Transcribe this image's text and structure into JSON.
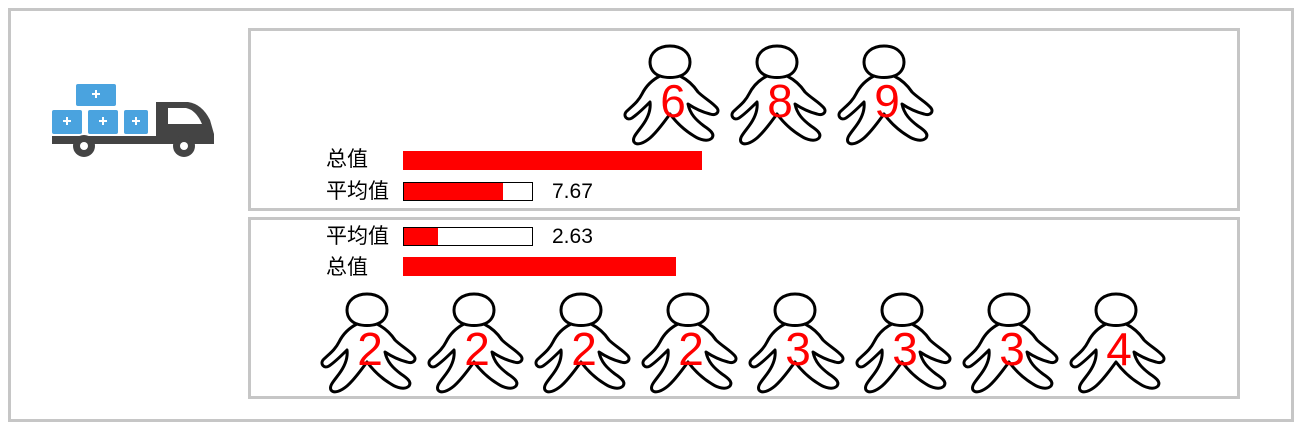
{
  "icons": {
    "delivery": "delivery-truck-icon",
    "person": "person-outline-icon"
  },
  "colors": {
    "accent": "#ff0000",
    "border": "#c6c6c6",
    "truck": "#444444",
    "boxes": "#4aa3df"
  },
  "groups": [
    {
      "total_label": "总值",
      "average_label": "平均值",
      "average_value": "7.67",
      "people": [
        "6",
        "8",
        "9"
      ]
    },
    {
      "total_label": "总值",
      "average_label": "平均值",
      "average_value": "2.63",
      "people": [
        "2",
        "2",
        "2",
        "2",
        "3",
        "3",
        "3",
        "4"
      ]
    }
  ]
}
